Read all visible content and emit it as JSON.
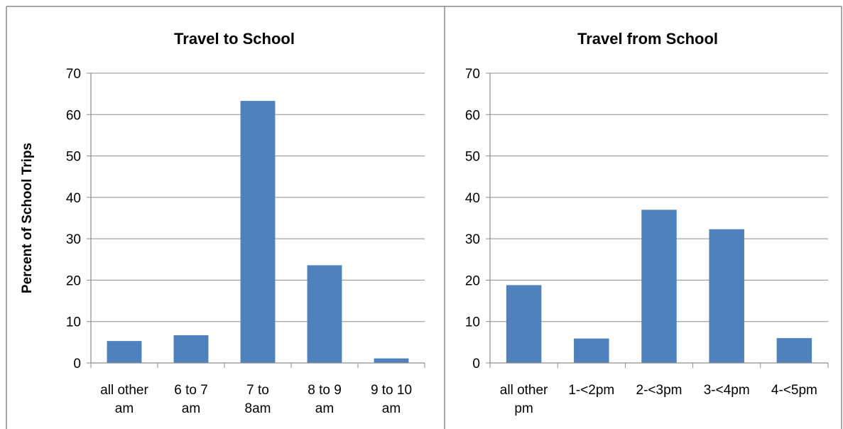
{
  "chart_data": [
    {
      "type": "bar",
      "title": "Travel to School",
      "ylabel": "Percent of School Trips",
      "xlabel": "",
      "ylim": [
        0,
        70
      ],
      "yticks": [
        0,
        10,
        20,
        30,
        40,
        50,
        60,
        70
      ],
      "categories": [
        "all other am",
        "6 to 7 am",
        "7 to 8am",
        "8 to 9 am",
        "9 to 10 am"
      ],
      "category_lines": [
        [
          "all other",
          "am"
        ],
        [
          "6 to 7",
          "am"
        ],
        [
          "7 to",
          "8am"
        ],
        [
          "8 to 9",
          "am"
        ],
        [
          "9 to 10",
          "am"
        ]
      ],
      "values": [
        5.3,
        6.7,
        63.3,
        23.6,
        1.1
      ],
      "bar_color": "#4f81bd",
      "grid": true,
      "legend": "none"
    },
    {
      "type": "bar",
      "title": "Travel from School",
      "ylabel": "",
      "xlabel": "",
      "ylim": [
        0,
        70
      ],
      "yticks": [
        0,
        10,
        20,
        30,
        40,
        50,
        60,
        70
      ],
      "categories": [
        "all other pm",
        "1-<2pm",
        "2-<3pm",
        "3-<4pm",
        "4-<5pm"
      ],
      "category_lines": [
        [
          "all other",
          "pm"
        ],
        [
          "1-<2pm"
        ],
        [
          "2-<3pm"
        ],
        [
          "3-<4pm"
        ],
        [
          "4-<5pm"
        ]
      ],
      "values": [
        18.8,
        5.9,
        37.0,
        32.3,
        6.0
      ],
      "bar_color": "#4f81bd",
      "grid": true,
      "legend": "none"
    }
  ]
}
